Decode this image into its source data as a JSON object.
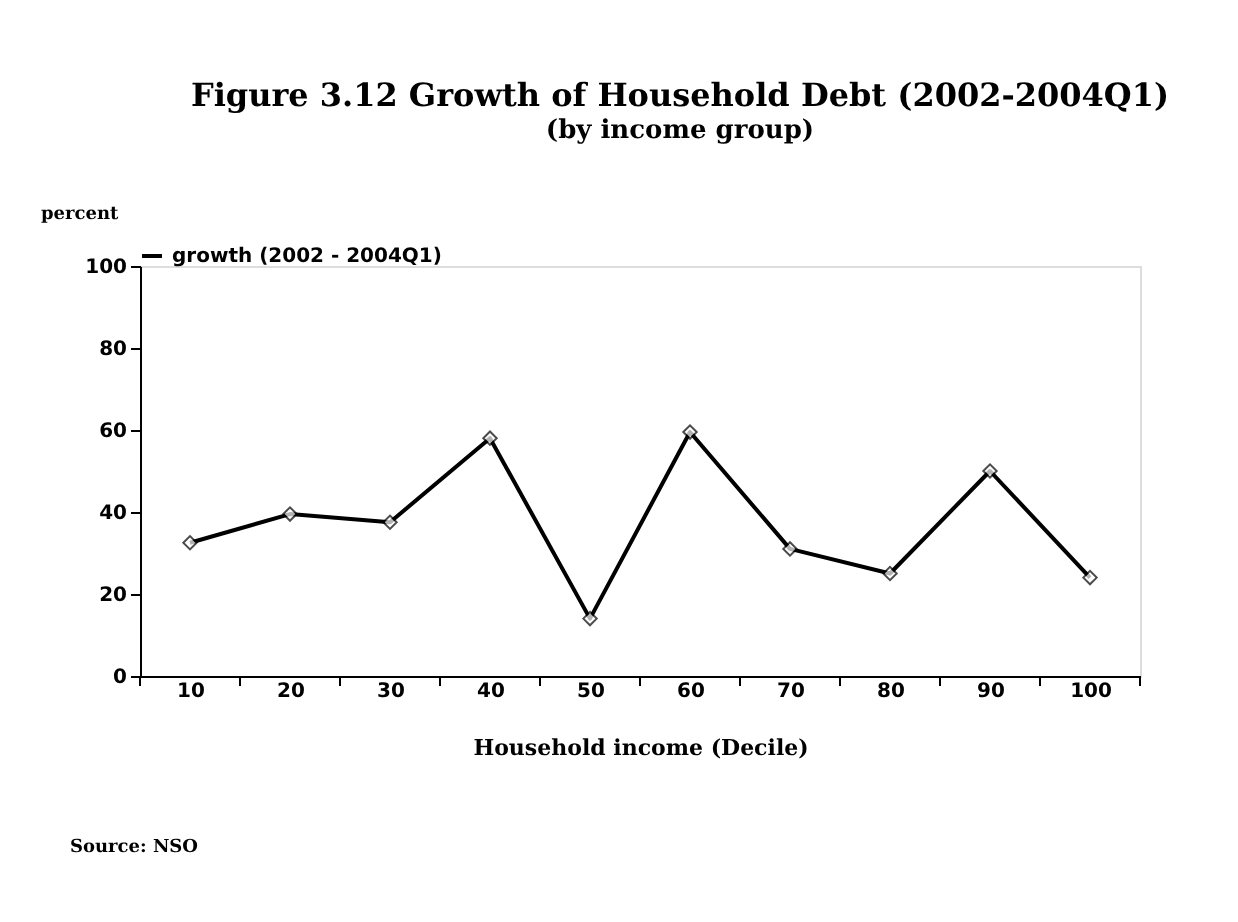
{
  "chart_data": {
    "type": "line",
    "title": "Figure 3.12  Growth of Household Debt (2002-2004Q1)",
    "subtitle": "(by income group)",
    "xlabel": "Household income (Decile)",
    "ylabel": "percent",
    "categories": [
      "10",
      "20",
      "30",
      "40",
      "50",
      "60",
      "70",
      "80",
      "90",
      "100"
    ],
    "series": [
      {
        "name": "growth (2002 - 2004Q1)",
        "color": "#000000",
        "values": [
          32.5,
          39.5,
          37.5,
          58,
          14,
          59.5,
          31,
          25,
          50,
          24
        ]
      }
    ],
    "ylim": [
      0,
      100
    ],
    "yticks": [
      0,
      20,
      40,
      60,
      80,
      100
    ],
    "grid": false,
    "legend": "top",
    "marker": "diamond",
    "line_style": "solid",
    "annotations": [
      "Source: NSO"
    ]
  }
}
